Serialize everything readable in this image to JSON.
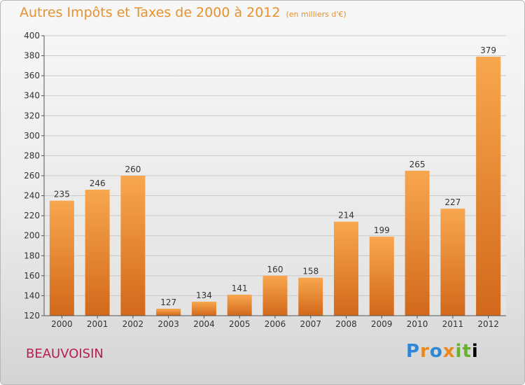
{
  "title": "Autres Impôts et Taxes de 2000 à 2012",
  "unit": "(en milliers d'€)",
  "place": "BEAUVOISIN",
  "logo": "Proxiti",
  "colors": {
    "bar_light": "#f8a74e",
    "bar_dark": "#d2681b",
    "title": "#e4922f",
    "place": "#b81e4f"
  },
  "chart_data": {
    "type": "bar",
    "categories": [
      "2000",
      "2001",
      "2002",
      "2003",
      "2004",
      "2005",
      "2006",
      "2007",
      "2008",
      "2009",
      "2010",
      "2011",
      "2012"
    ],
    "values": [
      235,
      246,
      260,
      127,
      134,
      141,
      160,
      158,
      214,
      199,
      265,
      227,
      379
    ],
    "yticks": [
      120,
      140,
      160,
      180,
      200,
      220,
      240,
      260,
      280,
      300,
      320,
      340,
      360,
      380,
      400
    ],
    "ylim": [
      120,
      400
    ],
    "grid": true,
    "legend": "none"
  }
}
